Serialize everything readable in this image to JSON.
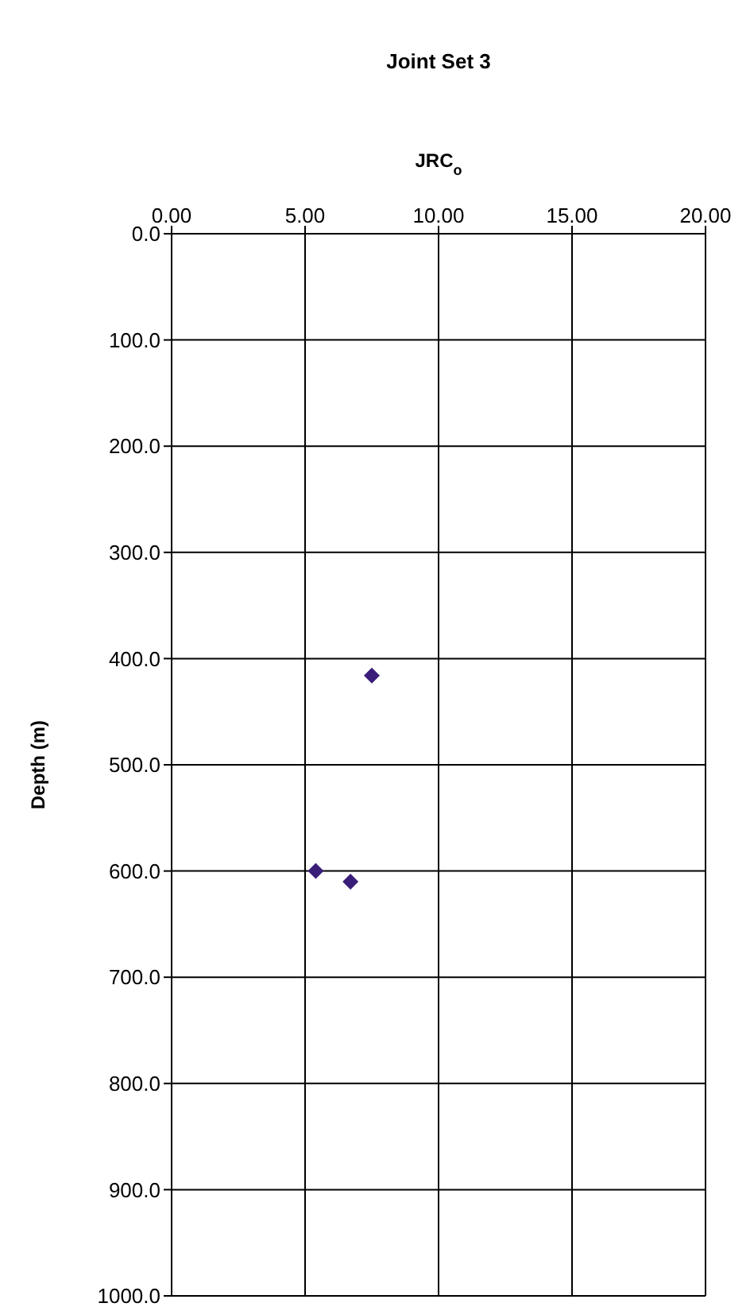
{
  "chart_data": {
    "type": "scatter",
    "title": "Joint Set 3",
    "xlabel": "JRC$_{o}$",
    "ylabel": "Depth (m)",
    "x": [
      7.5,
      5.4,
      6.7
    ],
    "series": [
      {
        "color": "#3a1d78",
        "values": [
          416,
          600,
          610
        ]
      }
    ],
    "xlim": [
      0,
      20
    ],
    "xticks": [
      {
        "value": 0,
        "label": "0.00"
      },
      {
        "value": 5,
        "label": "5.00"
      },
      {
        "value": 10,
        "label": "10.00"
      },
      {
        "value": 15,
        "label": "15.00"
      },
      {
        "value": 20,
        "label": "20.00"
      }
    ],
    "ylim": [
      1000,
      0
    ],
    "yticks": [
      {
        "value": 0,
        "label": "0.0"
      },
      {
        "value": 100,
        "label": "100.0"
      },
      {
        "value": 200,
        "label": "200.0"
      },
      {
        "value": 300,
        "label": "300.0"
      },
      {
        "value": 400,
        "label": "400.0"
      },
      {
        "value": 500,
        "label": "500.0"
      },
      {
        "value": 600,
        "label": "600.0"
      },
      {
        "value": 700,
        "label": "700.0"
      },
      {
        "value": 800,
        "label": "800.0"
      },
      {
        "value": 900,
        "label": "900.0"
      },
      {
        "value": 1000,
        "label": "1000.0"
      }
    ],
    "grid": true,
    "marker": "diamond"
  }
}
